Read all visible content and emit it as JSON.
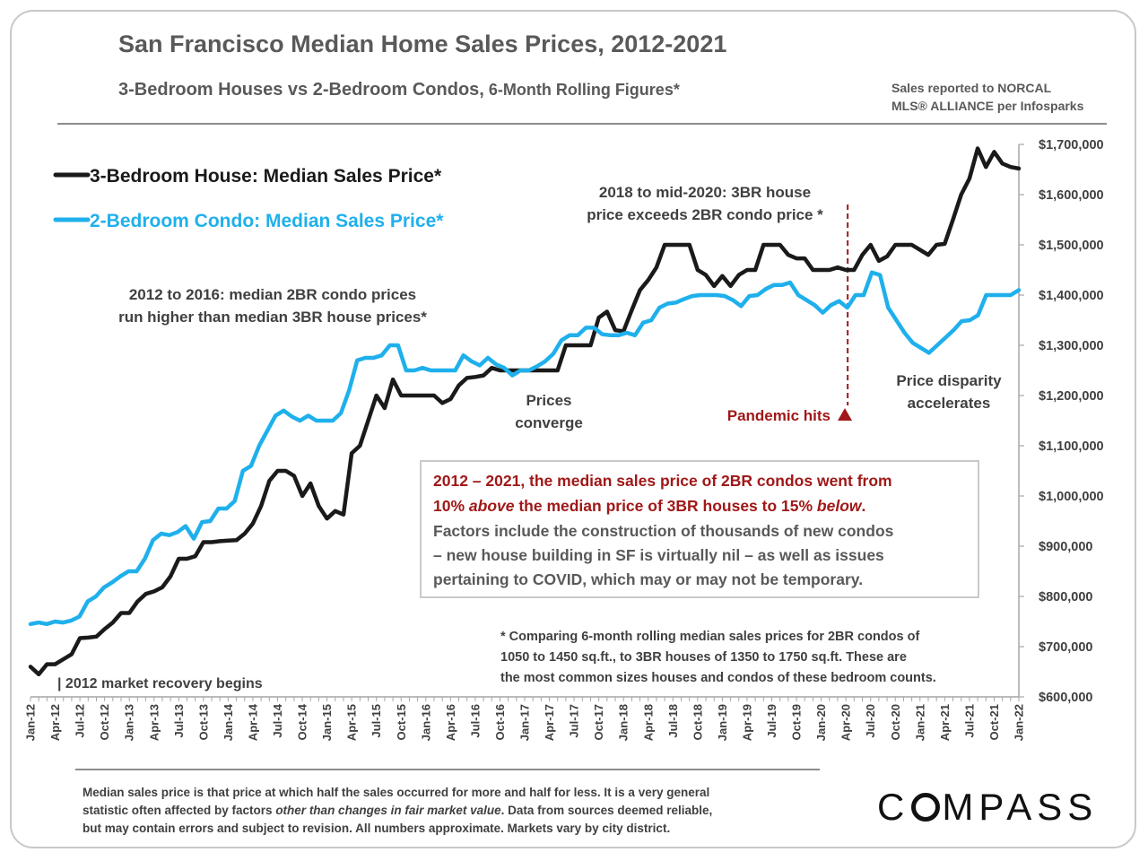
{
  "header": {
    "title": "San Francisco Median Home Sales Prices, 2012-2021",
    "subtitle_main": "3-Bedroom Houses vs 2-Bedroom Condos,",
    "subtitle_small": " 6-Month Rolling Figures*",
    "source_line1": "Sales reported to NORCAL",
    "source_line2": "MLS® ALLIANCE per Infosparks"
  },
  "annotations": {
    "early_line1": "2012 to 2016: median 2BR condo prices",
    "early_line2": "run higher than median 3BR house prices*",
    "mid_line1": "2018 to mid-2020: 3BR house",
    "mid_line2": "price exceeds 2BR condo price *",
    "converge_line1": "Prices",
    "converge_line2": "converge",
    "pandemic": "Pandemic hits",
    "disparity_line1": "Price disparity",
    "disparity_line2": "accelerates",
    "recovery": "| 2012 market recovery begins"
  },
  "callout": {
    "red_line1": "2012 – 2021, the median sales price of 2BR condos went from",
    "red_line2_a": "10% ",
    "red_line2_above": "above",
    "red_line2_b": " the median price of 3BR houses to 15% ",
    "red_line2_below": "below",
    "red_line2_c": ".",
    "grey_line1": "Factors include the construction of thousands of new condos",
    "grey_line2": "– new house building in SF is virtually nil – as well as issues",
    "grey_line3": "pertaining to COVID, which may or may not be temporary."
  },
  "note": {
    "line1": "* Comparing 6-month rolling median sales prices for 2BR condos of",
    "line2": "1050 to 1450 sq.ft., to 3BR houses of 1350 to 1750 sq.ft. These are",
    "line3": "the most common sizes houses and condos of these bedroom counts."
  },
  "footer": {
    "line1": "Median sales price is that price at which half the sales occurred for more and half for less. It is a very general",
    "line2a": "statistic often affected by factors ",
    "line2_italic": "other than changes in fair market value",
    "line2b": ". Data from sources deemed reliable,",
    "line3": "but may contain errors and subject to revision. All numbers approximate. Markets vary by city district.",
    "logo_c": "C",
    "logo_rest": "MPASS"
  },
  "colors": {
    "house": "#1a1a1a",
    "condo": "#1fb0ec",
    "pandemic": "#a01818",
    "text": "#404040"
  },
  "chart_data": {
    "type": "line",
    "x_tick_labels": [
      "Jan-12",
      "Apr-12",
      "Jul-12",
      "Oct-12",
      "Jan-13",
      "Apr-13",
      "Jul-13",
      "Oct-13",
      "Jan-14",
      "Apr-14",
      "Jul-14",
      "Oct-14",
      "Jan-15",
      "Apr-15",
      "Jul-15",
      "Oct-15",
      "Jan-16",
      "Apr-16",
      "Jul-16",
      "Oct-16",
      "Jan-17",
      "Apr-17",
      "Jul-17",
      "Oct-17",
      "Jan-18",
      "Apr-18",
      "Jul-18",
      "Oct-18",
      "Jan-19",
      "Apr-19",
      "Jul-19",
      "Oct-19",
      "Jan-20",
      "Apr-20",
      "Jul-20",
      "Oct-20",
      "Jan-21",
      "Apr-21",
      "Jul-21",
      "Oct-21",
      "Jan-22"
    ],
    "x_start": "Jan-12",
    "x_end": "Jan-22",
    "y_tick_labels": [
      "$600,000",
      "$700,000",
      "$800,000",
      "$900,000",
      "$1,000,000",
      "$1,100,000",
      "$1,200,000",
      "$1,300,000",
      "$1,400,000",
      "$1,500,000",
      "$1,600,000",
      "$1,700,000"
    ],
    "ylim": [
      600000,
      1700000
    ],
    "legend_placement": "top-left",
    "grid": false,
    "pandemic_marker": "Apr-20",
    "series": [
      {
        "name": "3-Bedroom House: Median Sales Price*",
        "values": [
          660000,
          645000,
          665000,
          665000,
          675000,
          685000,
          717000,
          718000,
          720000,
          735000,
          748000,
          767000,
          767000,
          790000,
          805000,
          810000,
          818000,
          840000,
          875000,
          875000,
          880000,
          908000,
          908000,
          910000,
          911000,
          912000,
          925000,
          945000,
          980000,
          1030000,
          1050000,
          1050000,
          1040000,
          1000000,
          1025000,
          980000,
          955000,
          970000,
          963000,
          1085000,
          1100000,
          1150000,
          1200000,
          1175000,
          1232000,
          1200000,
          1200000,
          1200000,
          1200000,
          1200000,
          1185000,
          1193000,
          1220000,
          1235000,
          1237000,
          1240000,
          1255000,
          1250000,
          1250000,
          1250000,
          1250000,
          1250000,
          1250000,
          1250000,
          1250000,
          1300000,
          1300000,
          1300000,
          1300000,
          1355000,
          1367000,
          1330000,
          1328000,
          1370000,
          1410000,
          1430000,
          1455000,
          1500000,
          1500000,
          1500000,
          1500000,
          1450000,
          1440000,
          1418000,
          1438000,
          1418000,
          1440000,
          1450000,
          1450000,
          1500000,
          1500000,
          1500000,
          1480000,
          1473000,
          1473000,
          1450000,
          1450000,
          1450000,
          1455000,
          1450000,
          1450000,
          1480000,
          1500000,
          1468000,
          1477000,
          1500000,
          1500000,
          1500000,
          1490000,
          1480000,
          1500000,
          1502000,
          1550000,
          1600000,
          1632000,
          1692000,
          1655000,
          1685000,
          1662000,
          1655000,
          1652000
        ]
      },
      {
        "name": "2-Bedroom Condo: Median Sales Price*",
        "values": [
          745000,
          748000,
          745000,
          750000,
          748000,
          752000,
          760000,
          790000,
          800000,
          818000,
          828000,
          840000,
          850000,
          850000,
          875000,
          912000,
          925000,
          922000,
          928000,
          940000,
          915000,
          948000,
          950000,
          975000,
          975000,
          990000,
          1050000,
          1060000,
          1100000,
          1130000,
          1160000,
          1170000,
          1158000,
          1150000,
          1160000,
          1150000,
          1150000,
          1150000,
          1165000,
          1210000,
          1270000,
          1275000,
          1275000,
          1280000,
          1300000,
          1300000,
          1250000,
          1250000,
          1255000,
          1250000,
          1250000,
          1250000,
          1250000,
          1280000,
          1268000,
          1260000,
          1275000,
          1262000,
          1255000,
          1240000,
          1250000,
          1250000,
          1258000,
          1268000,
          1283000,
          1310000,
          1320000,
          1320000,
          1335000,
          1335000,
          1322000,
          1320000,
          1320000,
          1325000,
          1320000,
          1345000,
          1350000,
          1375000,
          1383000,
          1385000,
          1392000,
          1398000,
          1400000,
          1400000,
          1400000,
          1398000,
          1390000,
          1378000,
          1398000,
          1400000,
          1412000,
          1420000,
          1420000,
          1425000,
          1400000,
          1390000,
          1380000,
          1365000,
          1380000,
          1388000,
          1375000,
          1400000,
          1400000,
          1445000,
          1440000,
          1375000,
          1350000,
          1325000,
          1305000,
          1295000,
          1285000,
          1300000,
          1315000,
          1330000,
          1348000,
          1350000,
          1360000,
          1400000,
          1400000,
          1400000,
          1400000,
          1410000
        ]
      }
    ]
  }
}
